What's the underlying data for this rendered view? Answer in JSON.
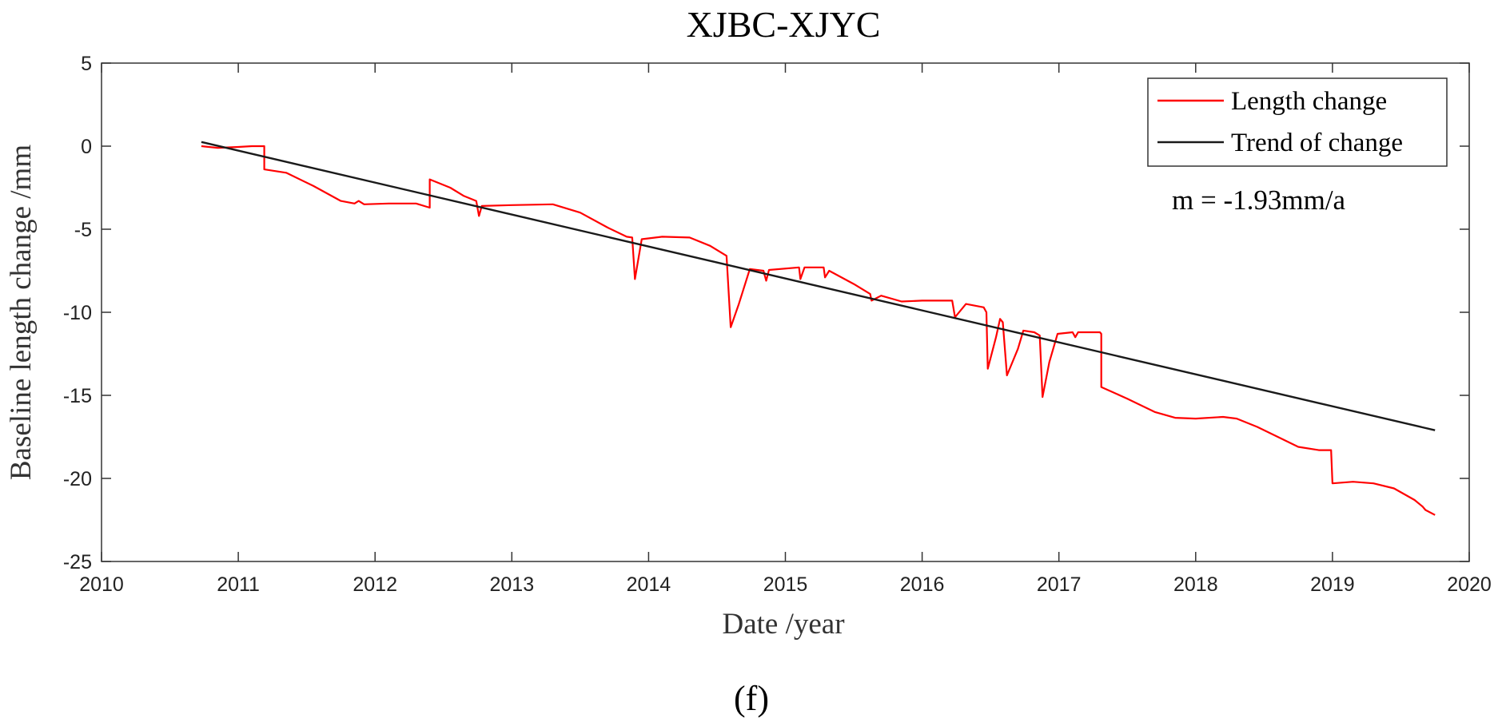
{
  "chart_data": {
    "type": "line",
    "title": "XJBC-XJYC",
    "xlabel": "Date /year",
    "ylabel": "Baseline length change /mm",
    "xlim": [
      2010,
      2020
    ],
    "ylim": [
      -25,
      5
    ],
    "xticks": [
      "2010",
      "2011",
      "2012",
      "2013",
      "2014",
      "2015",
      "2016",
      "2017",
      "2018",
      "2019",
      "2020"
    ],
    "yticks": [
      "5",
      "0",
      "-5",
      "-10",
      "-15",
      "-20",
      "-25"
    ],
    "grid": false,
    "legend_position": "top-right",
    "annotation": "m = -1.93mm/a",
    "caption": "(f)",
    "series": [
      {
        "name": "Length change",
        "color": "#ff0000",
        "points": [
          [
            2010.73,
            0.0
          ],
          [
            2010.85,
            -0.1
          ],
          [
            2011.0,
            -0.05
          ],
          [
            2011.1,
            0.0
          ],
          [
            2011.19,
            0.0
          ],
          [
            2011.19,
            -1.4
          ],
          [
            2011.35,
            -1.6
          ],
          [
            2011.55,
            -2.4
          ],
          [
            2011.75,
            -3.3
          ],
          [
            2011.85,
            -3.45
          ],
          [
            2011.88,
            -3.3
          ],
          [
            2011.92,
            -3.5
          ],
          [
            2012.1,
            -3.45
          ],
          [
            2012.3,
            -3.45
          ],
          [
            2012.4,
            -3.7
          ],
          [
            2012.4,
            -2.0
          ],
          [
            2012.55,
            -2.5
          ],
          [
            2012.65,
            -3.0
          ],
          [
            2012.74,
            -3.3
          ],
          [
            2012.76,
            -4.2
          ],
          [
            2012.78,
            -3.6
          ],
          [
            2013.0,
            -3.55
          ],
          [
            2013.3,
            -3.5
          ],
          [
            2013.5,
            -4.0
          ],
          [
            2013.7,
            -4.9
          ],
          [
            2013.84,
            -5.45
          ],
          [
            2013.88,
            -5.5
          ],
          [
            2013.9,
            -8.0
          ],
          [
            2013.95,
            -5.6
          ],
          [
            2014.1,
            -5.45
          ],
          [
            2014.3,
            -5.5
          ],
          [
            2014.45,
            -6.0
          ],
          [
            2014.57,
            -6.6
          ],
          [
            2014.6,
            -10.9
          ],
          [
            2014.66,
            -9.5
          ],
          [
            2014.74,
            -7.4
          ],
          [
            2014.84,
            -7.5
          ],
          [
            2014.86,
            -8.1
          ],
          [
            2014.88,
            -7.45
          ],
          [
            2015.1,
            -7.3
          ],
          [
            2015.11,
            -8.0
          ],
          [
            2015.14,
            -7.3
          ],
          [
            2015.28,
            -7.3
          ],
          [
            2015.29,
            -7.9
          ],
          [
            2015.32,
            -7.5
          ],
          [
            2015.5,
            -8.3
          ],
          [
            2015.62,
            -8.9
          ],
          [
            2015.63,
            -9.3
          ],
          [
            2015.7,
            -9.0
          ],
          [
            2015.85,
            -9.35
          ],
          [
            2016.0,
            -9.3
          ],
          [
            2016.22,
            -9.3
          ],
          [
            2016.24,
            -10.3
          ],
          [
            2016.32,
            -9.5
          ],
          [
            2016.45,
            -9.7
          ],
          [
            2016.47,
            -10.0
          ],
          [
            2016.48,
            -13.4
          ],
          [
            2016.54,
            -11.5
          ],
          [
            2016.57,
            -10.4
          ],
          [
            2016.59,
            -10.6
          ],
          [
            2016.62,
            -13.8
          ],
          [
            2016.7,
            -12.2
          ],
          [
            2016.74,
            -11.1
          ],
          [
            2016.82,
            -11.2
          ],
          [
            2016.86,
            -11.4
          ],
          [
            2016.88,
            -15.1
          ],
          [
            2016.93,
            -13.0
          ],
          [
            2016.99,
            -11.3
          ],
          [
            2017.1,
            -11.2
          ],
          [
            2017.12,
            -11.5
          ],
          [
            2017.14,
            -11.2
          ],
          [
            2017.3,
            -11.2
          ],
          [
            2017.31,
            -11.3
          ],
          [
            2017.31,
            -14.5
          ],
          [
            2017.5,
            -15.2
          ],
          [
            2017.7,
            -16.0
          ],
          [
            2017.85,
            -16.35
          ],
          [
            2018.0,
            -16.4
          ],
          [
            2018.2,
            -16.3
          ],
          [
            2018.3,
            -16.4
          ],
          [
            2018.45,
            -16.9
          ],
          [
            2018.6,
            -17.5
          ],
          [
            2018.75,
            -18.1
          ],
          [
            2018.9,
            -18.3
          ],
          [
            2018.99,
            -18.3
          ],
          [
            2019.0,
            -20.3
          ],
          [
            2019.15,
            -20.2
          ],
          [
            2019.3,
            -20.3
          ],
          [
            2019.45,
            -20.6
          ],
          [
            2019.6,
            -21.3
          ],
          [
            2019.66,
            -21.7
          ],
          [
            2019.68,
            -21.9
          ],
          [
            2019.75,
            -22.2
          ]
        ]
      },
      {
        "name": "Trend of change",
        "color": "#1a1a1a",
        "points": [
          [
            2010.73,
            0.25
          ],
          [
            2019.75,
            -17.1
          ]
        ]
      }
    ]
  }
}
